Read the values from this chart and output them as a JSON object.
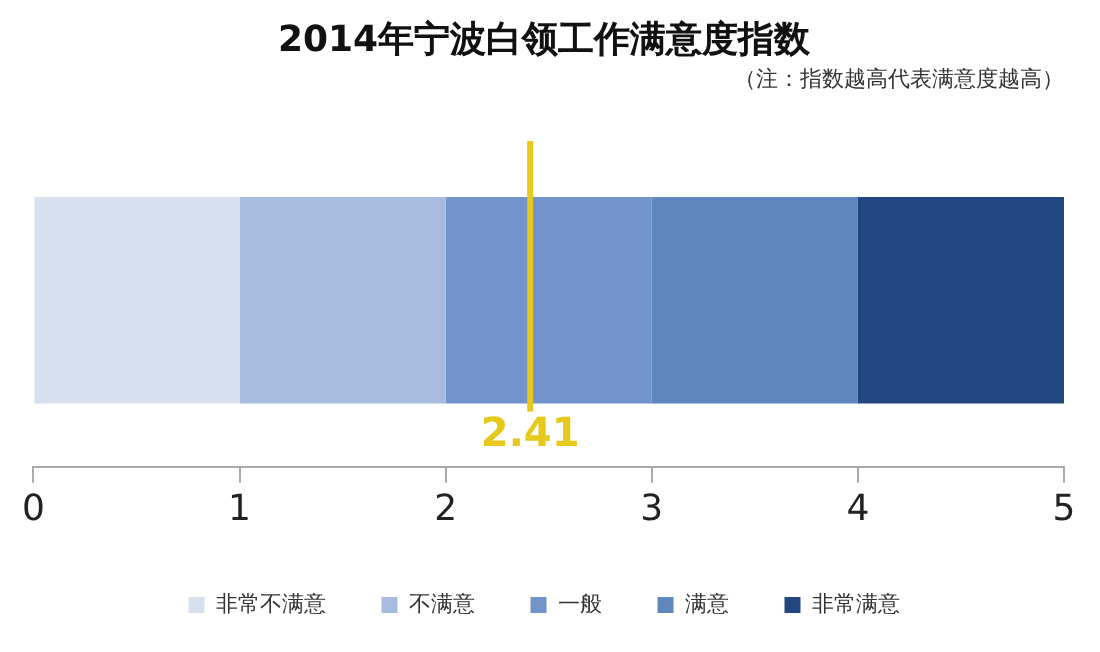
{
  "chart_data": {
    "type": "bar",
    "orientation": "horizontal",
    "stacked": true,
    "title": "2014年宁波白领工作满意度指数",
    "subtitle": "（注：指数越高代表满意度越高）",
    "categories": [
      null
    ],
    "series": [
      {
        "name": "非常不满意",
        "color": "#d6e0ef",
        "values": [
          1
        ]
      },
      {
        "name": "不满意",
        "color": "#a6bbde",
        "values": [
          1
        ]
      },
      {
        "name": "一般",
        "color": "#7393cb",
        "values": [
          1
        ]
      },
      {
        "name": "满意",
        "color": "#5f86bd",
        "values": [
          1
        ]
      },
      {
        "name": "非常满意",
        "color": "#22467f",
        "values": [
          1
        ]
      }
    ],
    "xlim": [
      0,
      5
    ],
    "xticks": [
      0,
      1,
      2,
      3,
      4,
      5
    ],
    "grid": false,
    "legend": "bottom",
    "ref_lines": [
      {
        "axis": "x",
        "value": 2.41,
        "label": "2.41",
        "color": "#e8c81a"
      }
    ]
  }
}
